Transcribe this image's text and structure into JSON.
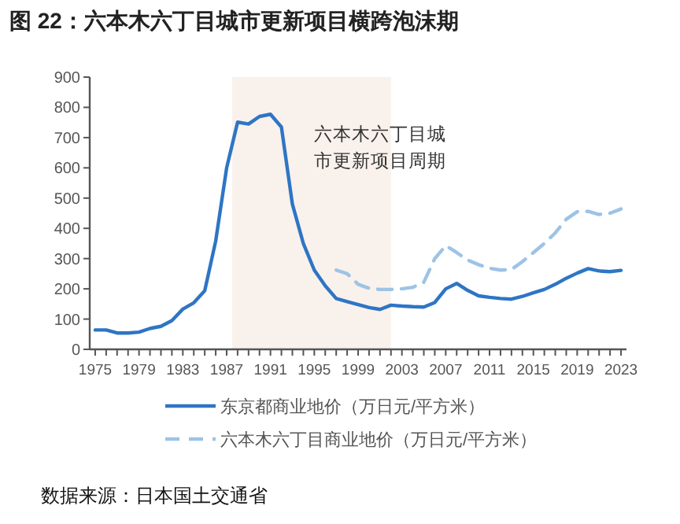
{
  "chart_data": {
    "type": "line",
    "title": "图 22：六本木六丁目城市更新项目横跨泡沫期",
    "x": [
      1975,
      1976,
      1977,
      1978,
      1979,
      1980,
      1981,
      1982,
      1983,
      1984,
      1985,
      1986,
      1987,
      1988,
      1989,
      1990,
      1991,
      1992,
      1993,
      1994,
      1995,
      1996,
      1997,
      1998,
      1999,
      2000,
      2001,
      2002,
      2003,
      2004,
      2005,
      2006,
      2007,
      2008,
      2009,
      2010,
      2011,
      2012,
      2013,
      2014,
      2015,
      2016,
      2017,
      2018,
      2019,
      2020,
      2021,
      2022,
      2023
    ],
    "series": [
      {
        "name": "东京都商业地价（万日元/平方米）",
        "color": "#2e75c4",
        "line_style": "solid",
        "values": [
          64,
          64,
          54,
          54,
          57,
          69,
          76,
          95,
          133,
          154,
          194,
          358,
          600,
          751,
          745,
          770,
          777,
          735,
          480,
          350,
          262,
          210,
          168,
          158,
          148,
          138,
          132,
          146,
          143,
          141,
          140,
          155,
          200,
          218,
          195,
          177,
          172,
          168,
          166,
          175,
          187,
          198,
          215,
          235,
          252,
          267,
          259,
          257,
          261
        ]
      },
      {
        "name": "六本木六丁目商业地价（万日元/平方米）",
        "color": "#9dc3e6",
        "line_style": "dashed",
        "values": [
          null,
          null,
          null,
          null,
          null,
          null,
          null,
          null,
          null,
          null,
          null,
          null,
          null,
          null,
          null,
          null,
          null,
          null,
          null,
          null,
          null,
          null,
          262,
          250,
          215,
          202,
          198,
          198,
          200,
          205,
          222,
          300,
          343,
          320,
          295,
          280,
          268,
          262,
          264,
          290,
          320,
          350,
          385,
          430,
          455,
          456,
          446,
          450,
          464
        ]
      }
    ],
    "xlim": [
      1974.5,
      2023.5
    ],
    "xticks": [
      1975,
      {
        "value": 1976,
        "label": null
      },
      {
        "value": 1977,
        "label": null
      },
      {
        "value": 1978,
        "label": null
      },
      1979,
      {
        "value": 1980,
        "label": null
      },
      {
        "value": 1981,
        "label": null
      },
      {
        "value": 1982,
        "label": null
      },
      1983,
      {
        "value": 1984,
        "label": null
      },
      {
        "value": 1985,
        "label": null
      },
      {
        "value": 1986,
        "label": null
      },
      1987,
      {
        "value": 1988,
        "label": null
      },
      {
        "value": 1989,
        "label": null
      },
      {
        "value": 1990,
        "label": null
      },
      1991,
      {
        "value": 1992,
        "label": null
      },
      {
        "value": 1993,
        "label": null
      },
      {
        "value": 1994,
        "label": null
      },
      1995,
      {
        "value": 1996,
        "label": null
      },
      {
        "value": 1997,
        "label": null
      },
      {
        "value": 1998,
        "label": null
      },
      1999,
      {
        "value": 2000,
        "label": null
      },
      {
        "value": 2001,
        "label": null
      },
      {
        "value": 2002,
        "label": null
      },
      2003,
      {
        "value": 2004,
        "label": null
      },
      {
        "value": 2005,
        "label": null
      },
      {
        "value": 2006,
        "label": null
      },
      2007,
      {
        "value": 2008,
        "label": null
      },
      {
        "value": 2009,
        "label": null
      },
      {
        "value": 2010,
        "label": null
      },
      2011,
      {
        "value": 2012,
        "label": null
      },
      {
        "value": 2013,
        "label": null
      },
      {
        "value": 2014,
        "label": null
      },
      2015,
      {
        "value": 2016,
        "label": null
      },
      {
        "value": 2017,
        "label": null
      },
      {
        "value": 2018,
        "label": null
      },
      2019,
      {
        "value": 2020,
        "label": null
      },
      {
        "value": 2021,
        "label": null
      },
      {
        "value": 2022,
        "label": null
      },
      2023
    ],
    "ylim": [
      0,
      900
    ],
    "yticks": [
      0,
      100,
      200,
      300,
      400,
      500,
      600,
      700,
      800,
      900
    ],
    "bands": [
      {
        "axis": "x",
        "from": 1987.5,
        "to": 2002,
        "label": "六本木六丁目城市更新项目周期",
        "color": "#f9f1ec"
      }
    ],
    "grid": false,
    "legend": "bottom",
    "marker": "none",
    "annotations": [
      "数据来源：日本国土交通省"
    ]
  }
}
